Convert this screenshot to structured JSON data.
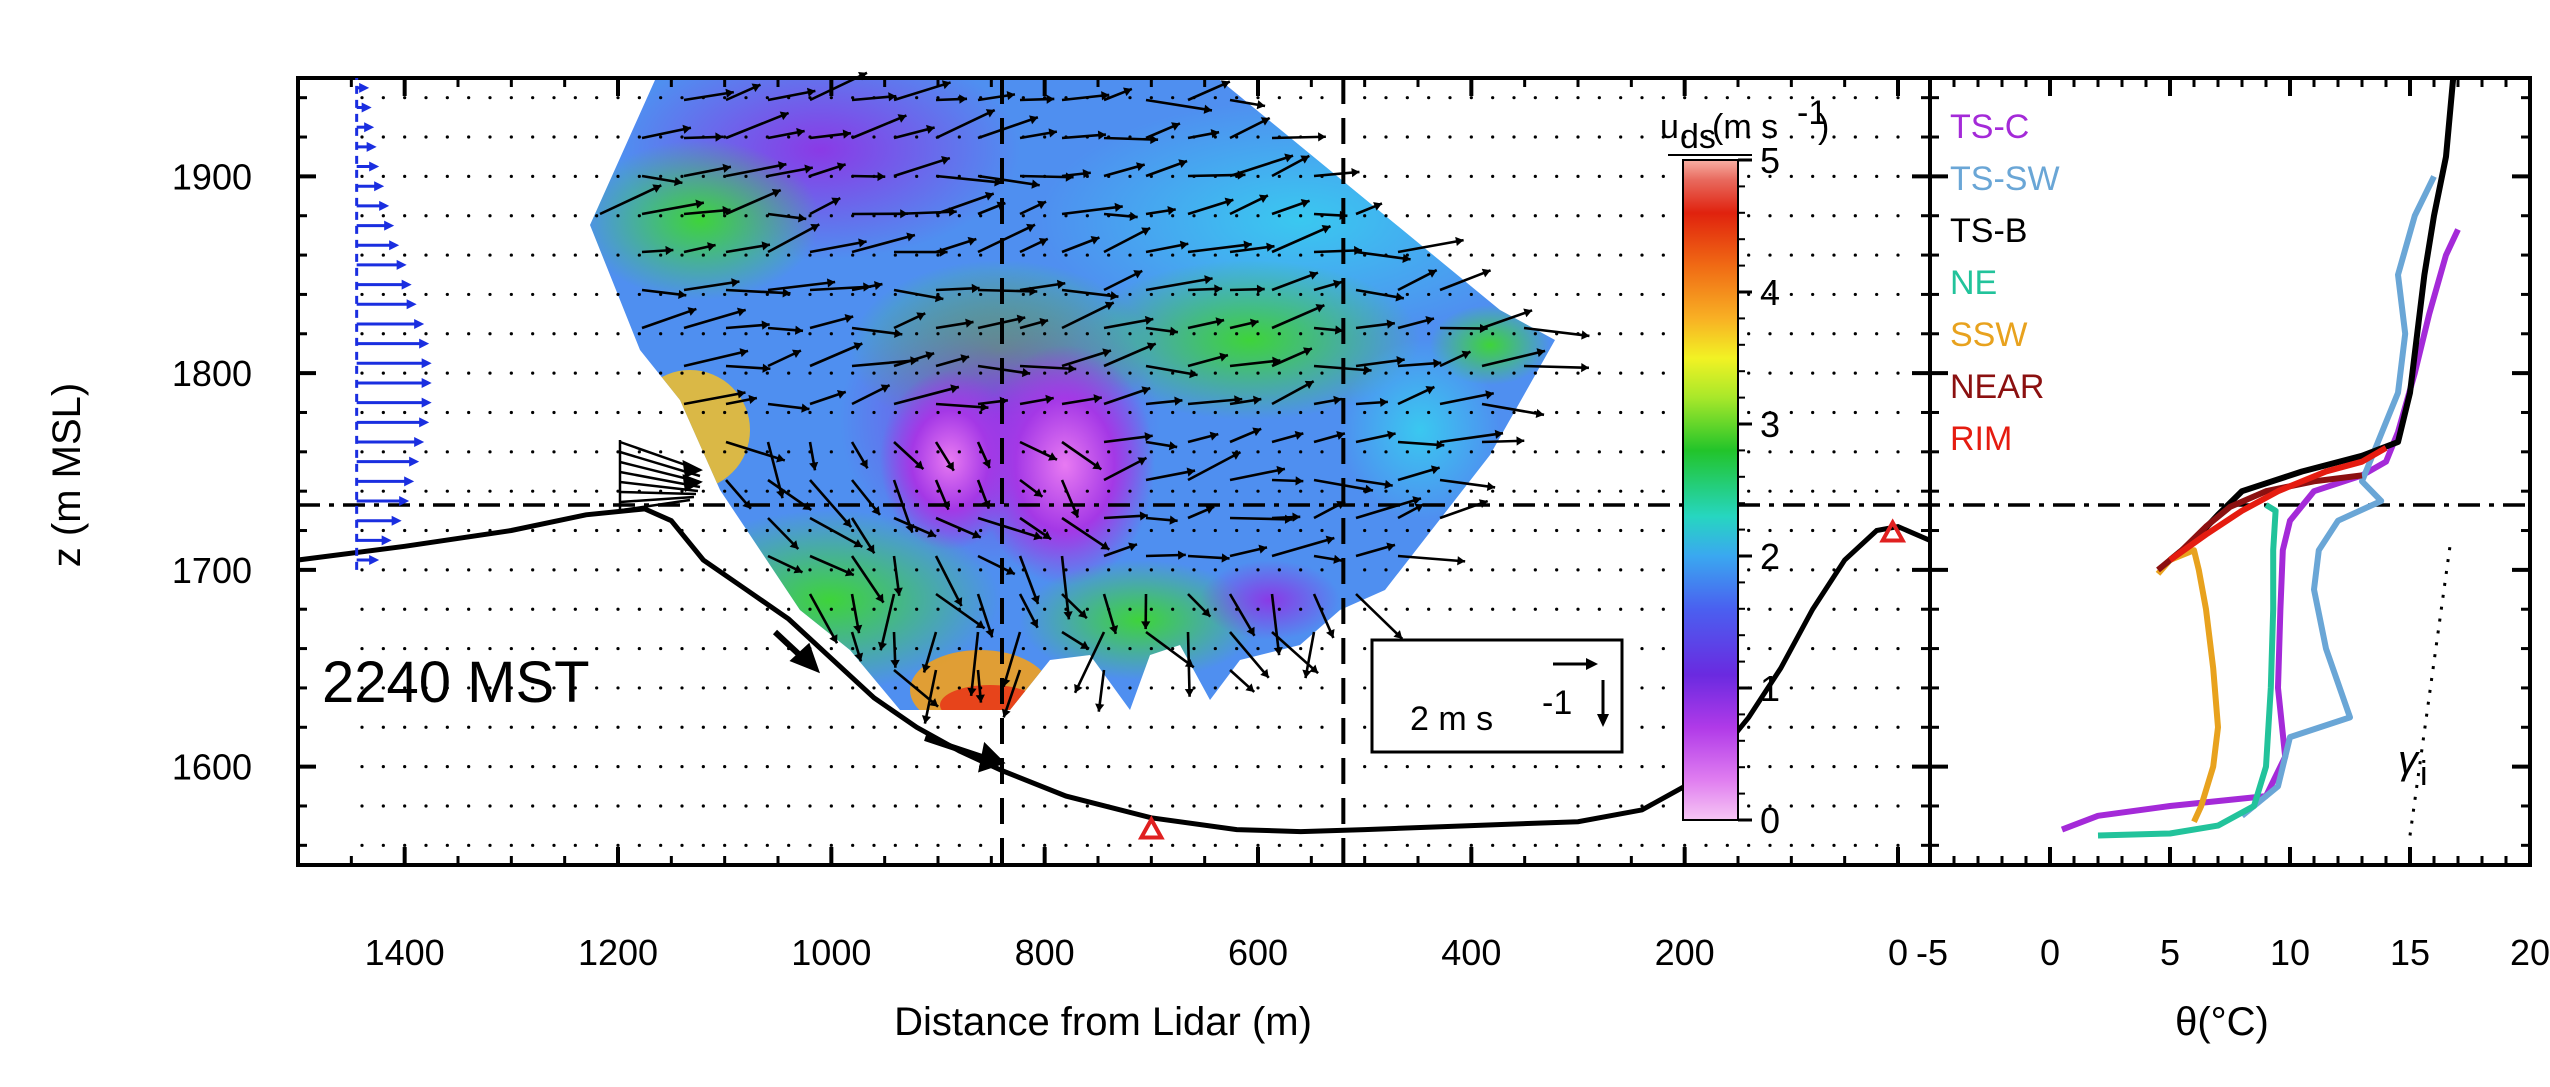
{
  "chart_data": [
    {
      "type": "scatter",
      "panel": "left",
      "xlabel": "Distance from Lidar (m)",
      "ylabel": "z (m MSL)",
      "xlim": [
        1500,
        -30
      ],
      "ylim": [
        1550,
        1950
      ],
      "xticks": [
        "1400",
        "1200",
        "1000",
        "800",
        "600",
        "400",
        "200",
        "0"
      ],
      "xtick_values": [
        1400,
        1200,
        1000,
        800,
        600,
        400,
        200,
        0
      ],
      "yticks": [
        "1600",
        "1700",
        "1800",
        "1900"
      ],
      "ytick_values": [
        1600,
        1700,
        1800,
        1900
      ],
      "time_label": "2240 MST",
      "scale_label": "2 m s",
      "scale_sup": "-1",
      "colorbar": {
        "label": "u",
        "label_sub": "ds",
        "label_units": "(m s",
        "label_sup": "-1",
        "label_close": ")",
        "ticks": [
          "0",
          "1",
          "2",
          "3",
          "4",
          "5"
        ],
        "tick_values": [
          0,
          1,
          2,
          3,
          4,
          5
        ],
        "range": [
          0,
          5
        ]
      },
      "terrain": [
        [
          1500,
          1705
        ],
        [
          1400,
          1712
        ],
        [
          1300,
          1720
        ],
        [
          1230,
          1728
        ],
        [
          1175,
          1731
        ],
        [
          1150,
          1725
        ],
        [
          1120,
          1705
        ],
        [
          1080,
          1690
        ],
        [
          1040,
          1675
        ],
        [
          1000,
          1655
        ],
        [
          960,
          1635
        ],
        [
          920,
          1620
        ],
        [
          880,
          1608
        ],
        [
          840,
          1598
        ],
        [
          780,
          1585
        ],
        [
          700,
          1574
        ],
        [
          620,
          1568
        ],
        [
          560,
          1567
        ],
        [
          500,
          1568
        ],
        [
          400,
          1570
        ],
        [
          300,
          1572
        ],
        [
          240,
          1578
        ],
        [
          200,
          1590
        ],
        [
          170,
          1605
        ],
        [
          140,
          1625
        ],
        [
          110,
          1650
        ],
        [
          80,
          1680
        ],
        [
          50,
          1705
        ],
        [
          20,
          1720
        ],
        [
          0,
          1722
        ],
        [
          -30,
          1715
        ]
      ],
      "reference_height": 1733,
      "vertical_lines": [
        840,
        520
      ],
      "markers": [
        {
          "x": 700,
          "z": 1567,
          "color": "#e02020"
        },
        {
          "x": 5,
          "z": 1718,
          "color": "#e02020"
        }
      ],
      "profile_arrows_z": [
        1705,
        1715,
        1725,
        1735,
        1745,
        1755,
        1765,
        1775,
        1785,
        1795,
        1805,
        1815,
        1825,
        1835,
        1845,
        1855,
        1865,
        1875,
        1885,
        1895,
        1905,
        1915,
        1925,
        1935,
        1945
      ],
      "profile_arrows_u": [
        0.5,
        1.0,
        1.4,
        1.7,
        1.9,
        2.1,
        2.3,
        2.5,
        2.6,
        2.6,
        2.6,
        2.5,
        2.3,
        2.0,
        1.8,
        1.6,
        1.3,
        1.1,
        0.9,
        0.7,
        0.5,
        0.4,
        0.3,
        0.2,
        0.1
      ]
    },
    {
      "type": "line",
      "panel": "right",
      "xlabel": "θ(°C)",
      "xlim": [
        -5,
        20
      ],
      "ylim": [
        1550,
        1950
      ],
      "xticks": [
        "-5",
        "0",
        "5",
        "10",
        "15",
        "20"
      ],
      "xtick_values": [
        -5,
        0,
        5,
        10,
        15,
        20
      ],
      "reference_height": 1733,
      "gamma_label": "γ",
      "gamma_sub": "i",
      "gamma_line": [
        [
          15.0,
          1565
        ],
        [
          16.7,
          1715
        ]
      ],
      "series": [
        {
          "name": "TS-C",
          "color": "#a42ad8",
          "points": [
            [
              0.5,
              1568
            ],
            [
              2,
              1575
            ],
            [
              5,
              1580
            ],
            [
              9,
              1585
            ],
            [
              9.8,
              1605
            ],
            [
              9.5,
              1640
            ],
            [
              9.6,
              1680
            ],
            [
              9.7,
              1710
            ],
            [
              10,
              1725
            ],
            [
              11,
              1740
            ],
            [
              13,
              1748
            ],
            [
              14,
              1755
            ],
            [
              14.5,
              1770
            ],
            [
              15.2,
              1800
            ],
            [
              15.8,
              1830
            ],
            [
              16.5,
              1860
            ],
            [
              17,
              1873
            ]
          ]
        },
        {
          "name": "TS-SW",
          "color": "#6aa6d6",
          "points": [
            [
              8,
              1575
            ],
            [
              9.5,
              1590
            ],
            [
              10,
              1615
            ],
            [
              12.5,
              1625
            ],
            [
              11.5,
              1660
            ],
            [
              11,
              1690
            ],
            [
              11.2,
              1710
            ],
            [
              12,
              1725
            ],
            [
              13.8,
              1735
            ],
            [
              13,
              1745
            ],
            [
              13.5,
              1760
            ],
            [
              14.5,
              1790
            ],
            [
              14.8,
              1820
            ],
            [
              14.5,
              1850
            ],
            [
              15.2,
              1880
            ],
            [
              16,
              1900
            ]
          ]
        },
        {
          "name": "TS-B",
          "color": "#000000",
          "points": [
            [
              5,
              1705
            ],
            [
              6,
              1715
            ],
            [
              7,
              1728
            ],
            [
              8,
              1740
            ],
            [
              10.5,
              1750
            ],
            [
              13,
              1758
            ],
            [
              14.5,
              1765
            ],
            [
              15,
              1790
            ],
            [
              15.3,
              1820
            ],
            [
              15.6,
              1850
            ],
            [
              16,
              1880
            ],
            [
              16.5,
              1910
            ],
            [
              16.8,
              1950
            ]
          ]
        },
        {
          "name": "NE",
          "color": "#22c39b",
          "points": [
            [
              2,
              1565
            ],
            [
              5,
              1566
            ],
            [
              7,
              1570
            ],
            [
              8.5,
              1580
            ],
            [
              9,
              1600
            ],
            [
              9.2,
              1640
            ],
            [
              9.3,
              1680
            ],
            [
              9.3,
              1710
            ],
            [
              9.4,
              1730
            ],
            [
              9,
              1733
            ]
          ]
        },
        {
          "name": "SSW",
          "color": "#e8a21e",
          "points": [
            [
              4.5,
              1698
            ],
            [
              5,
              1705
            ],
            [
              6,
              1710
            ],
            [
              6.2,
              1700
            ],
            [
              6.5,
              1680
            ],
            [
              6.8,
              1650
            ],
            [
              7,
              1620
            ],
            [
              6.8,
              1600
            ],
            [
              6.3,
              1580
            ],
            [
              6,
              1572
            ]
          ]
        },
        {
          "name": "NEAR",
          "color": "#8b1010",
          "points": [
            [
              4.5,
              1700
            ],
            [
              5.5,
              1710
            ],
            [
              6.5,
              1722
            ],
            [
              7.5,
              1732
            ],
            [
              9,
              1740
            ],
            [
              11,
              1745
            ],
            [
              13,
              1748
            ]
          ]
        },
        {
          "name": "RIM",
          "color": "#e51c10",
          "points": [
            [
              5,
              1705
            ],
            [
              6.5,
              1718
            ],
            [
              8,
              1730
            ],
            [
              9.5,
              1740
            ],
            [
              11.5,
              1750
            ],
            [
              13,
              1755
            ],
            [
              14,
              1762
            ]
          ]
        }
      ]
    }
  ]
}
